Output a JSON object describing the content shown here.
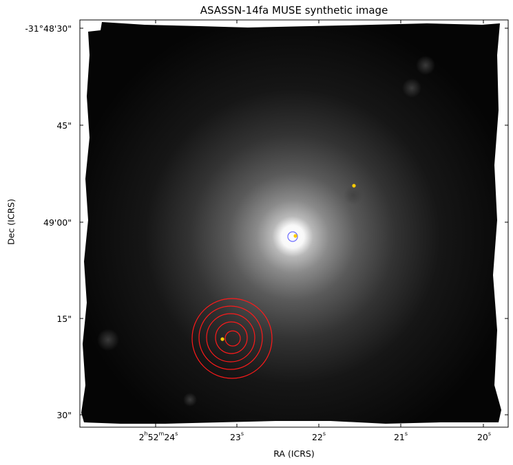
{
  "title": "ASASSN-14fa MUSE synthetic image",
  "axes": {
    "xlabel": "RA (ICRS)",
    "ylabel": "Dec (ICRS)",
    "y_ticks": [
      "-31°48'30\"",
      "45\"",
      "49'00\"",
      "15\"",
      "30\""
    ],
    "x_ticks": [
      {
        "h": "2",
        "m": "52",
        "s": "24",
        "main": true
      },
      {
        "s": "23"
      },
      {
        "s": "22"
      },
      {
        "s": "21"
      },
      {
        "s": "20"
      }
    ]
  },
  "colors": {
    "background_sky": "#000000",
    "galaxy_core": "#ffffff",
    "contours": "#ff1a1a",
    "host_circle": "#6a6aff",
    "markers": "#ffcc00"
  },
  "overlays": {
    "contour_rings": 5,
    "markers": 3,
    "host_circle": 1
  }
}
